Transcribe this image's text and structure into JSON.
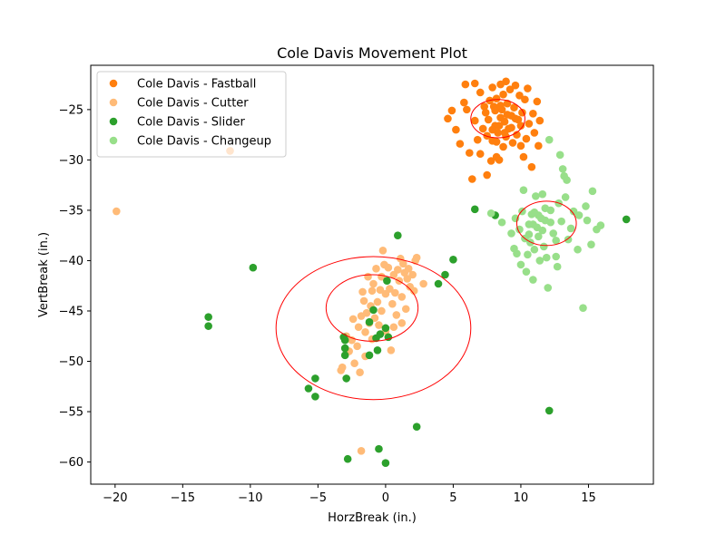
{
  "chart_data": {
    "type": "scatter",
    "title": "Cole Davis Movement Plot",
    "xlabel": "HorzBreak (in.)",
    "ylabel": "VertBreak (in.)",
    "xlim": [
      -21.8,
      19.8
    ],
    "ylim": [
      -62.2,
      -20.6
    ],
    "xticks": [
      -20,
      -15,
      -10,
      -5,
      0,
      5,
      10,
      15
    ],
    "yticks": [
      -60,
      -55,
      -50,
      -45,
      -40,
      -35,
      -30,
      -25
    ],
    "grid": false,
    "legend_position": "top-left",
    "series": [
      {
        "name": "Cole Davis - Fastball",
        "color": "#ff7f0e",
        "points": [
          [
            -11.5,
            -29.1
          ],
          [
            4.6,
            -25.9
          ],
          [
            4.9,
            -25.1
          ],
          [
            5.2,
            -27.0
          ],
          [
            5.5,
            -28.4
          ],
          [
            5.8,
            -24.3
          ],
          [
            5.9,
            -22.5
          ],
          [
            6.0,
            -25.0
          ],
          [
            6.2,
            -29.3
          ],
          [
            6.4,
            -31.9
          ],
          [
            6.6,
            -22.4
          ],
          [
            6.8,
            -28.0
          ],
          [
            7.0,
            -23.3
          ],
          [
            7.0,
            -29.4
          ],
          [
            7.2,
            -26.9
          ],
          [
            7.3,
            -24.7
          ],
          [
            7.5,
            -27.6
          ],
          [
            7.5,
            -31.5
          ],
          [
            7.7,
            -24.1
          ],
          [
            7.8,
            -30.1
          ],
          [
            7.9,
            -22.8
          ],
          [
            7.9,
            -28.1
          ],
          [
            8.0,
            -24.7
          ],
          [
            8.1,
            -26.6
          ],
          [
            8.2,
            -23.9
          ],
          [
            8.2,
            -29.7
          ],
          [
            8.3,
            -27.3
          ],
          [
            8.4,
            -30.0
          ],
          [
            8.5,
            -22.5
          ],
          [
            8.5,
            -25.8
          ],
          [
            8.6,
            -25.0
          ],
          [
            8.7,
            -23.5
          ],
          [
            8.7,
            -28.7
          ],
          [
            8.8,
            -26.2
          ],
          [
            8.9,
            -22.2
          ],
          [
            8.9,
            -27.7
          ],
          [
            9.0,
            -24.4
          ],
          [
            9.1,
            -26.9
          ],
          [
            9.2,
            -23.0
          ],
          [
            9.3,
            -25.6
          ],
          [
            9.4,
            -28.3
          ],
          [
            9.5,
            -24.8
          ],
          [
            9.6,
            -22.6
          ],
          [
            9.7,
            -27.5
          ],
          [
            9.8,
            -26.0
          ],
          [
            9.9,
            -23.6
          ],
          [
            10.0,
            -28.6
          ],
          [
            10.1,
            -25.3
          ],
          [
            10.2,
            -29.7
          ],
          [
            10.3,
            -24.0
          ],
          [
            10.4,
            -27.9
          ],
          [
            10.5,
            -22.9
          ],
          [
            10.6,
            -26.4
          ],
          [
            10.8,
            -30.7
          ],
          [
            10.9,
            -25.4
          ],
          [
            11.0,
            -27.3
          ],
          [
            11.2,
            -24.2
          ],
          [
            11.3,
            -28.6
          ],
          [
            11.4,
            -26.1
          ],
          [
            9.0,
            -25.5
          ],
          [
            8.4,
            -26.6
          ],
          [
            7.6,
            -26.0
          ],
          [
            8.1,
            -25.1
          ],
          [
            8.8,
            -27.3
          ],
          [
            9.3,
            -26.8
          ],
          [
            7.9,
            -27.0
          ],
          [
            8.5,
            -24.6
          ],
          [
            9.6,
            -25.9
          ],
          [
            7.4,
            -25.3
          ],
          [
            8.2,
            -28.2
          ],
          [
            10.0,
            -26.6
          ],
          [
            6.6,
            -26.1
          ]
        ]
      },
      {
        "name": "Cole Davis - Cutter",
        "color": "#ffbb78",
        "points": [
          [
            -19.9,
            -35.1
          ],
          [
            -3.3,
            -50.9
          ],
          [
            -3.2,
            -50.6
          ],
          [
            -2.7,
            -49.0
          ],
          [
            -2.5,
            -47.9
          ],
          [
            -2.3,
            -50.2
          ],
          [
            -2.1,
            -48.5
          ],
          [
            -2.0,
            -46.6
          ],
          [
            -1.9,
            -51.1
          ],
          [
            -1.8,
            -45.5
          ],
          [
            -1.8,
            -58.9
          ],
          [
            -1.7,
            -43.1
          ],
          [
            -1.6,
            -44.0
          ],
          [
            -1.5,
            -47.1
          ],
          [
            -1.4,
            -45.2
          ],
          [
            -1.3,
            -41.6
          ],
          [
            -1.2,
            -46.2
          ],
          [
            -1.1,
            -44.5
          ],
          [
            -1.0,
            -43.0
          ],
          [
            -0.9,
            -42.3
          ],
          [
            -0.8,
            -45.7
          ],
          [
            -0.7,
            -40.8
          ],
          [
            -0.6,
            -44.1
          ],
          [
            -0.5,
            -46.4
          ],
          [
            -0.4,
            -42.9
          ],
          [
            -0.3,
            -41.6
          ],
          [
            -0.2,
            -39.0
          ],
          [
            -0.1,
            -40.4
          ],
          [
            0.0,
            -43.3
          ],
          [
            0.0,
            -47.0
          ],
          [
            0.2,
            -40.7
          ],
          [
            0.3,
            -42.8
          ],
          [
            0.4,
            -48.9
          ],
          [
            0.5,
            -44.3
          ],
          [
            0.6,
            -41.4
          ],
          [
            0.7,
            -43.2
          ],
          [
            0.8,
            -45.4
          ],
          [
            0.9,
            -40.9
          ],
          [
            1.0,
            -42.0
          ],
          [
            1.1,
            -39.8
          ],
          [
            1.2,
            -43.6
          ],
          [
            1.3,
            -40.3
          ],
          [
            1.4,
            -41.2
          ],
          [
            1.5,
            -44.8
          ],
          [
            1.6,
            -41.8
          ],
          [
            1.7,
            -40.8
          ],
          [
            1.8,
            -42.6
          ],
          [
            2.0,
            -41.4
          ],
          [
            2.2,
            -40.0
          ],
          [
            2.3,
            -39.7
          ],
          [
            2.1,
            -43.0
          ],
          [
            -1.5,
            -49.5
          ],
          [
            -2.4,
            -45.8
          ],
          [
            -1.0,
            -47.8
          ],
          [
            0.6,
            -46.6
          ],
          [
            -0.3,
            -45.0
          ],
          [
            1.2,
            -46.2
          ],
          [
            -2.9,
            -47.5
          ],
          [
            2.8,
            -42.3
          ]
        ]
      },
      {
        "name": "Cole Davis - Slider",
        "color": "#2ca02c",
        "points": [
          [
            -13.1,
            -45.6
          ],
          [
            -13.1,
            -46.5
          ],
          [
            -9.8,
            -40.7
          ],
          [
            -5.7,
            -52.7
          ],
          [
            -5.2,
            -51.7
          ],
          [
            -5.2,
            -53.5
          ],
          [
            -3.1,
            -47.6
          ],
          [
            -3.0,
            -47.9
          ],
          [
            -3.0,
            -48.7
          ],
          [
            -3.0,
            -49.4
          ],
          [
            -2.9,
            -51.7
          ],
          [
            -2.8,
            -59.7
          ],
          [
            -1.2,
            -46.1
          ],
          [
            -1.2,
            -49.4
          ],
          [
            -0.9,
            -44.9
          ],
          [
            -0.7,
            -47.7
          ],
          [
            -0.6,
            -48.9
          ],
          [
            -0.5,
            -58.7
          ],
          [
            -0.4,
            -47.3
          ],
          [
            0.0,
            -46.7
          ],
          [
            0.0,
            -60.1
          ],
          [
            0.1,
            -42.0
          ],
          [
            0.2,
            -47.6
          ],
          [
            0.9,
            -37.5
          ],
          [
            2.3,
            -56.5
          ],
          [
            3.9,
            -42.3
          ],
          [
            4.4,
            -41.4
          ],
          [
            5.0,
            -39.9
          ],
          [
            6.6,
            -34.9
          ],
          [
            8.1,
            -35.5
          ],
          [
            12.1,
            -54.9
          ],
          [
            17.8,
            -35.9
          ]
        ]
      },
      {
        "name": "Cole Davis - Changeup",
        "color": "#98df8a",
        "points": [
          [
            7.8,
            -35.3
          ],
          [
            8.6,
            -36.2
          ],
          [
            9.3,
            -37.3
          ],
          [
            9.5,
            -38.8
          ],
          [
            9.6,
            -35.8
          ],
          [
            9.7,
            -39.3
          ],
          [
            9.9,
            -36.9
          ],
          [
            10.0,
            -40.4
          ],
          [
            10.1,
            -35.1
          ],
          [
            10.2,
            -33.0
          ],
          [
            10.3,
            -37.8
          ],
          [
            10.4,
            -41.1
          ],
          [
            10.5,
            -39.4
          ],
          [
            10.6,
            -36.4
          ],
          [
            10.7,
            -38.2
          ],
          [
            10.8,
            -35.4
          ],
          [
            10.9,
            -41.9
          ],
          [
            11.0,
            -38.9
          ],
          [
            11.1,
            -33.6
          ],
          [
            11.2,
            -36.7
          ],
          [
            11.3,
            -37.6
          ],
          [
            11.4,
            -40.0
          ],
          [
            11.5,
            -35.8
          ],
          [
            11.6,
            -33.4
          ],
          [
            11.7,
            -38.6
          ],
          [
            11.8,
            -36.0
          ],
          [
            11.9,
            -39.7
          ],
          [
            12.0,
            -42.7
          ],
          [
            12.1,
            -28.0
          ],
          [
            12.2,
            -35.0
          ],
          [
            12.4,
            -37.3
          ],
          [
            12.6,
            -39.6
          ],
          [
            12.7,
            -40.6
          ],
          [
            12.8,
            -34.3
          ],
          [
            12.9,
            -29.5
          ],
          [
            13.0,
            -36.1
          ],
          [
            13.1,
            -30.9
          ],
          [
            13.2,
            -31.6
          ],
          [
            13.3,
            -33.7
          ],
          [
            13.5,
            -37.9
          ],
          [
            13.7,
            -36.8
          ],
          [
            13.9,
            -35.1
          ],
          [
            14.2,
            -38.9
          ],
          [
            14.3,
            -35.5
          ],
          [
            14.6,
            -44.7
          ],
          [
            14.8,
            -34.6
          ],
          [
            14.9,
            -36.0
          ],
          [
            15.2,
            -38.4
          ],
          [
            15.3,
            -33.1
          ],
          [
            15.6,
            -36.9
          ],
          [
            15.9,
            -36.5
          ],
          [
            11.0,
            -35.2
          ],
          [
            11.3,
            -35.5
          ],
          [
            11.6,
            -37.0
          ],
          [
            10.6,
            -37.4
          ],
          [
            12.2,
            -36.2
          ],
          [
            11.8,
            -34.8
          ],
          [
            10.9,
            -36.4
          ],
          [
            13.4,
            -32.0
          ],
          [
            12.6,
            -38.0
          ]
        ]
      }
    ],
    "ellipses": [
      {
        "color": "#ff0000",
        "cx": 8.3,
        "cy": -25.9,
        "rx": 2.0,
        "ry": 1.9
      },
      {
        "color": "#ff0000",
        "cx": 11.9,
        "cy": -36.3,
        "rx": 2.2,
        "ry": 2.2
      },
      {
        "color": "#ff0000",
        "cx": -1.0,
        "cy": -44.7,
        "rx": 3.4,
        "ry": 3.3
      },
      {
        "color": "#ff0000",
        "cx": -0.9,
        "cy": -46.7,
        "rx": 7.2,
        "ry": 7.1
      }
    ]
  }
}
